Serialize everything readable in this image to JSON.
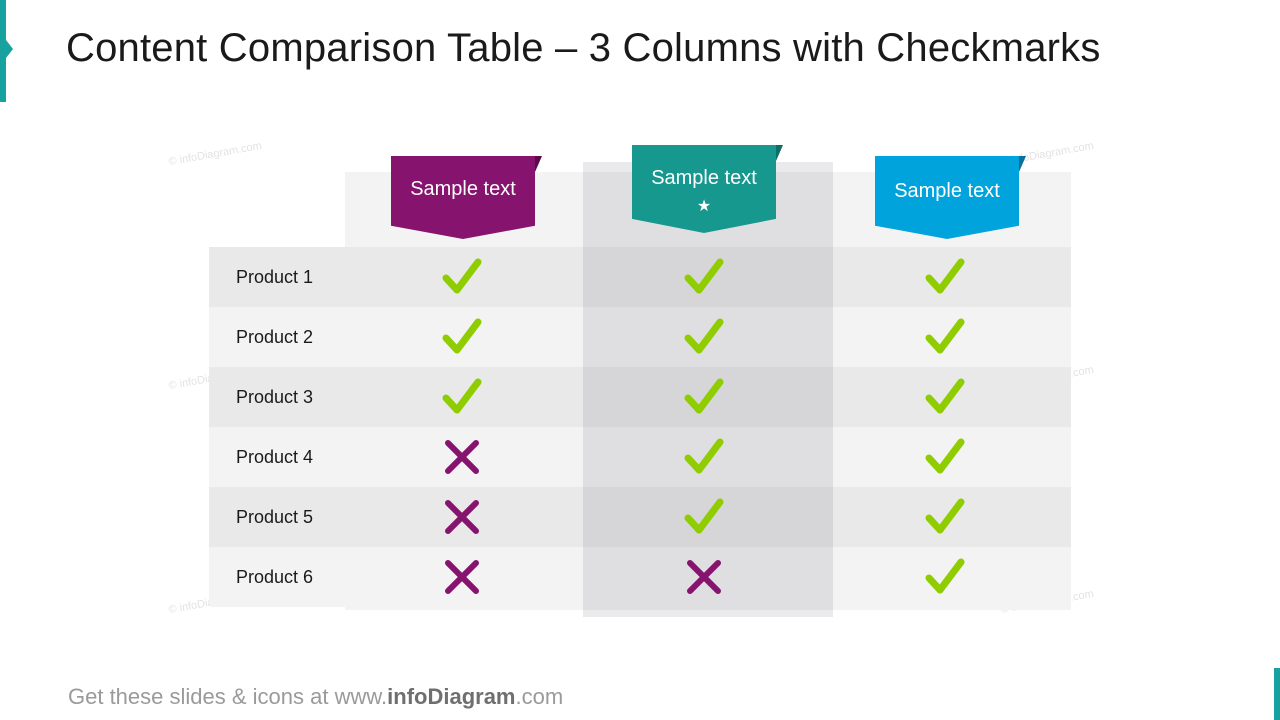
{
  "title": "Content Comparison Table – 3 Columns with Checkmarks",
  "watermark": "© infoDiagram.com",
  "colors": {
    "accent": "#17a2a0",
    "col1": "#86136d",
    "col2": "#16988f",
    "col3": "#00a3db",
    "check": "#8fcc00",
    "cross": "#86136d"
  },
  "columns": [
    {
      "label": "Sample text",
      "featured": false
    },
    {
      "label": "Sample text",
      "featured": true,
      "star": "★"
    },
    {
      "label": "Sample text",
      "featured": false
    }
  ],
  "rows": [
    {
      "label": "Product 1",
      "values": [
        "check",
        "check",
        "check"
      ]
    },
    {
      "label": "Product 2",
      "values": [
        "check",
        "check",
        "check"
      ]
    },
    {
      "label": "Product 3",
      "values": [
        "check",
        "check",
        "check"
      ]
    },
    {
      "label": "Product 4",
      "values": [
        "cross",
        "check",
        "check"
      ]
    },
    {
      "label": "Product 5",
      "values": [
        "cross",
        "check",
        "check"
      ]
    },
    {
      "label": "Product 6",
      "values": [
        "cross",
        "cross",
        "check"
      ]
    }
  ],
  "footer": {
    "prefix": "Get these slides & icons at www.",
    "brand": "infoDiagram",
    "suffix": ".com"
  }
}
